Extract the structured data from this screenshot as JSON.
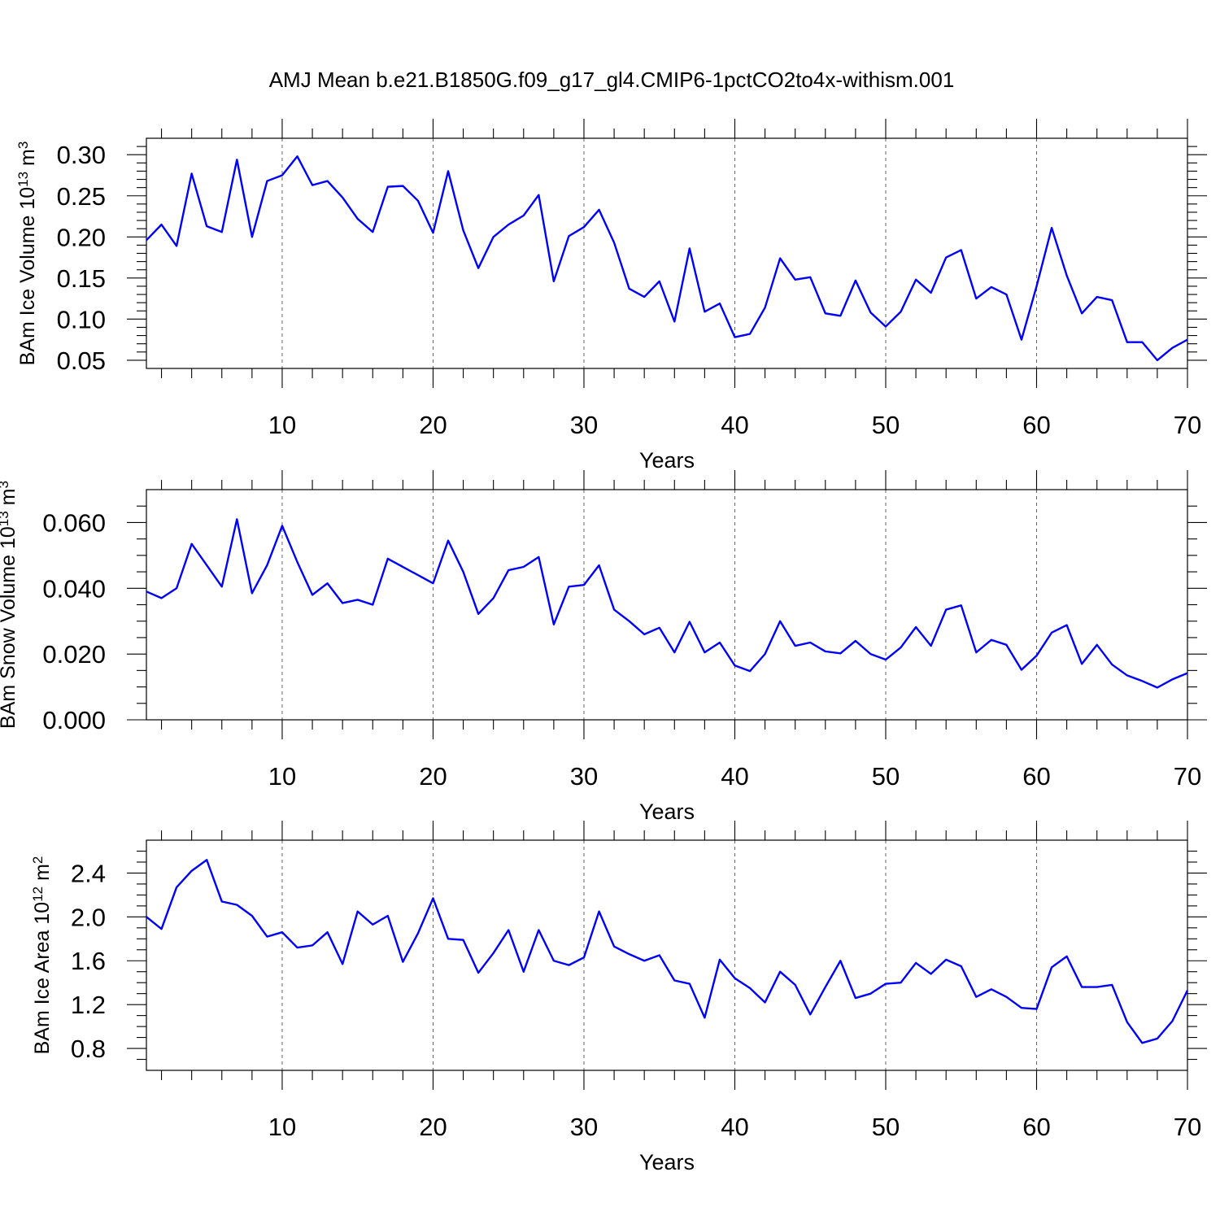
{
  "figure_title": "AMJ Mean b.e21.B1850G.f09_g17_gl4.CMIP6-1pctCO2to4x-withism.001",
  "colors": {
    "series": "#0000ff",
    "axes": "#000000",
    "background": "#ffffff"
  },
  "chart_data": [
    {
      "type": "line",
      "ylabel": {
        "prefix": "BAm Ice Volume 10",
        "exp": "13",
        "unit": " m",
        "unit_exp": "3"
      },
      "xlabel": "Years",
      "xlim": [
        1,
        70
      ],
      "ylim": [
        0.04,
        0.32
      ],
      "xticks": [
        10,
        20,
        30,
        40,
        50,
        60,
        70
      ],
      "yticks": [
        0.05,
        0.1,
        0.15,
        0.2,
        0.25,
        0.3
      ],
      "ytick_labels": [
        "0.05",
        "0.10",
        "0.15",
        "0.20",
        "0.25",
        "0.30"
      ],
      "y_minor_step": 0.01,
      "grid": "vertical dashed at major x ticks",
      "x": [
        1,
        2,
        3,
        4,
        5,
        6,
        7,
        8,
        9,
        10,
        11,
        12,
        13,
        14,
        15,
        16,
        17,
        18,
        19,
        20,
        21,
        22,
        23,
        24,
        25,
        26,
        27,
        28,
        29,
        30,
        31,
        32,
        33,
        34,
        35,
        36,
        37,
        38,
        39,
        40,
        41,
        42,
        43,
        44,
        45,
        46,
        47,
        48,
        49,
        50,
        51,
        52,
        53,
        54,
        55,
        56,
        57,
        58,
        59,
        60,
        61,
        62,
        63,
        64,
        65,
        66,
        67,
        68,
        69,
        70
      ],
      "values": [
        0.196,
        0.215,
        0.189,
        0.277,
        0.213,
        0.206,
        0.294,
        0.2,
        0.268,
        0.275,
        0.298,
        0.263,
        0.268,
        0.248,
        0.222,
        0.206,
        0.261,
        0.262,
        0.244,
        0.205,
        0.28,
        0.208,
        0.162,
        0.2,
        0.215,
        0.226,
        0.251,
        0.146,
        0.201,
        0.212,
        0.233,
        0.193,
        0.137,
        0.127,
        0.146,
        0.097,
        0.186,
        0.109,
        0.119,
        0.078,
        0.082,
        0.114,
        0.174,
        0.148,
        0.151,
        0.107,
        0.104,
        0.147,
        0.108,
        0.091,
        0.109,
        0.148,
        0.132,
        0.175,
        0.184,
        0.125,
        0.139,
        0.13,
        0.075,
        0.14,
        0.211,
        0.153,
        0.107,
        0.127,
        0.123,
        0.072,
        0.072,
        0.05,
        0.065,
        0.075
      ]
    },
    {
      "type": "line",
      "ylabel": {
        "prefix": "BAm Snow Volume 10",
        "exp": "13",
        "unit": " m",
        "unit_exp": "3"
      },
      "xlabel": "Years",
      "xlim": [
        1,
        70
      ],
      "ylim": [
        0.0,
        0.07
      ],
      "xticks": [
        10,
        20,
        30,
        40,
        50,
        60,
        70
      ],
      "yticks": [
        0.0,
        0.02,
        0.04,
        0.06
      ],
      "ytick_labels": [
        "0.000",
        "0.020",
        "0.040",
        "0.060"
      ],
      "y_minor_step": 0.005,
      "grid": "vertical dashed at major x ticks",
      "x": [
        1,
        2,
        3,
        4,
        5,
        6,
        7,
        8,
        9,
        10,
        11,
        12,
        13,
        14,
        15,
        16,
        17,
        18,
        19,
        20,
        21,
        22,
        23,
        24,
        25,
        26,
        27,
        28,
        29,
        30,
        31,
        32,
        33,
        34,
        35,
        36,
        37,
        38,
        39,
        40,
        41,
        42,
        43,
        44,
        45,
        46,
        47,
        48,
        49,
        50,
        51,
        52,
        53,
        54,
        55,
        56,
        57,
        58,
        59,
        60,
        61,
        62,
        63,
        64,
        65,
        66,
        67,
        68,
        69,
        70
      ],
      "values": [
        0.039,
        0.037,
        0.04,
        0.0535,
        0.047,
        0.0405,
        0.061,
        0.0385,
        0.047,
        0.059,
        0.048,
        0.038,
        0.0415,
        0.0355,
        0.0365,
        0.035,
        0.049,
        0.0465,
        0.044,
        0.0415,
        0.0545,
        0.045,
        0.0322,
        0.037,
        0.0455,
        0.0465,
        0.0495,
        0.029,
        0.0405,
        0.041,
        0.047,
        0.0335,
        0.03,
        0.026,
        0.028,
        0.0205,
        0.0298,
        0.0205,
        0.0235,
        0.0165,
        0.0148,
        0.02,
        0.03,
        0.0225,
        0.0235,
        0.0208,
        0.0202,
        0.024,
        0.02,
        0.0183,
        0.022,
        0.0282,
        0.0225,
        0.0335,
        0.0348,
        0.0205,
        0.0243,
        0.0228,
        0.0152,
        0.0195,
        0.0265,
        0.0288,
        0.017,
        0.0228,
        0.0168,
        0.0135,
        0.0118,
        0.0098,
        0.0123,
        0.0142
      ]
    },
    {
      "type": "line",
      "ylabel": {
        "prefix": "BAm Ice Area 10",
        "exp": "12",
        "unit": " m",
        "unit_exp": "2"
      },
      "xlabel": "Years",
      "xlim": [
        1,
        70
      ],
      "ylim": [
        0.6,
        2.7
      ],
      "xticks": [
        10,
        20,
        30,
        40,
        50,
        60,
        70
      ],
      "yticks": [
        0.8,
        1.2,
        1.6,
        2.0,
        2.4
      ],
      "ytick_labels": [
        "0.8",
        "1.2",
        "1.6",
        "2.0",
        "2.4"
      ],
      "y_minor_step": 0.1,
      "grid": "vertical dashed at major x ticks",
      "x": [
        1,
        2,
        3,
        4,
        5,
        6,
        7,
        8,
        9,
        10,
        11,
        12,
        13,
        14,
        15,
        16,
        17,
        18,
        19,
        20,
        21,
        22,
        23,
        24,
        25,
        26,
        27,
        28,
        29,
        30,
        31,
        32,
        33,
        34,
        35,
        36,
        37,
        38,
        39,
        40,
        41,
        42,
        43,
        44,
        45,
        46,
        47,
        48,
        49,
        50,
        51,
        52,
        53,
        54,
        55,
        56,
        57,
        58,
        59,
        60,
        61,
        62,
        63,
        64,
        65,
        66,
        67,
        68,
        69,
        70
      ],
      "values": [
        2.0,
        1.89,
        2.27,
        2.42,
        2.52,
        2.14,
        2.11,
        2.01,
        1.82,
        1.86,
        1.72,
        1.74,
        1.86,
        1.57,
        2.05,
        1.93,
        2.01,
        1.59,
        1.85,
        2.17,
        1.8,
        1.79,
        1.49,
        1.67,
        1.88,
        1.5,
        1.88,
        1.6,
        1.56,
        1.63,
        2.05,
        1.73,
        1.66,
        1.6,
        1.65,
        1.42,
        1.39,
        1.08,
        1.61,
        1.44,
        1.35,
        1.22,
        1.5,
        1.38,
        1.11,
        1.36,
        1.6,
        1.26,
        1.3,
        1.39,
        1.4,
        1.58,
        1.48,
        1.61,
        1.55,
        1.27,
        1.34,
        1.27,
        1.17,
        1.16,
        1.54,
        1.64,
        1.36,
        1.36,
        1.38,
        1.04,
        0.85,
        0.89,
        1.05,
        1.33
      ]
    }
  ]
}
